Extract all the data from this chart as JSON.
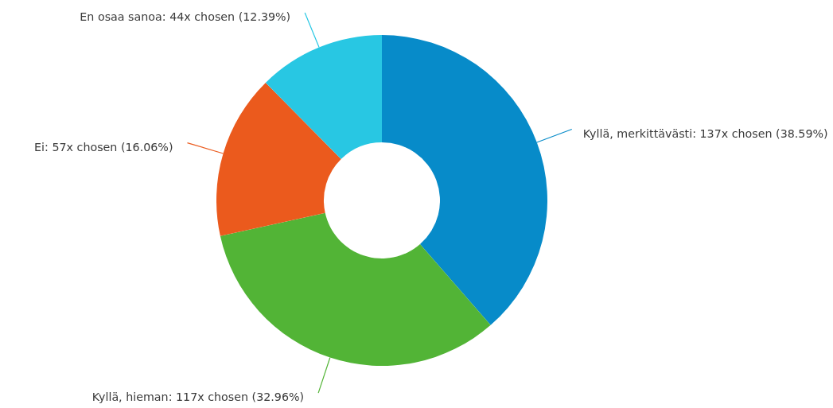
{
  "chart_data": {
    "type": "donut",
    "categories": [
      "Kyllä, merkittävästi",
      "Kyllä, hieman",
      "Ei",
      "En osaa sanoa"
    ],
    "values": [
      137,
      117,
      57,
      44
    ],
    "colors": [
      "#078bc9",
      "#52b436",
      "#eb5a1d",
      "#28c7e3"
    ],
    "value_labels": [
      "137x chosen (38.59%)",
      "117x chosen (32.96%)",
      "57x chosen (16.06%)",
      "44x chosen (12.39%)"
    ]
  }
}
